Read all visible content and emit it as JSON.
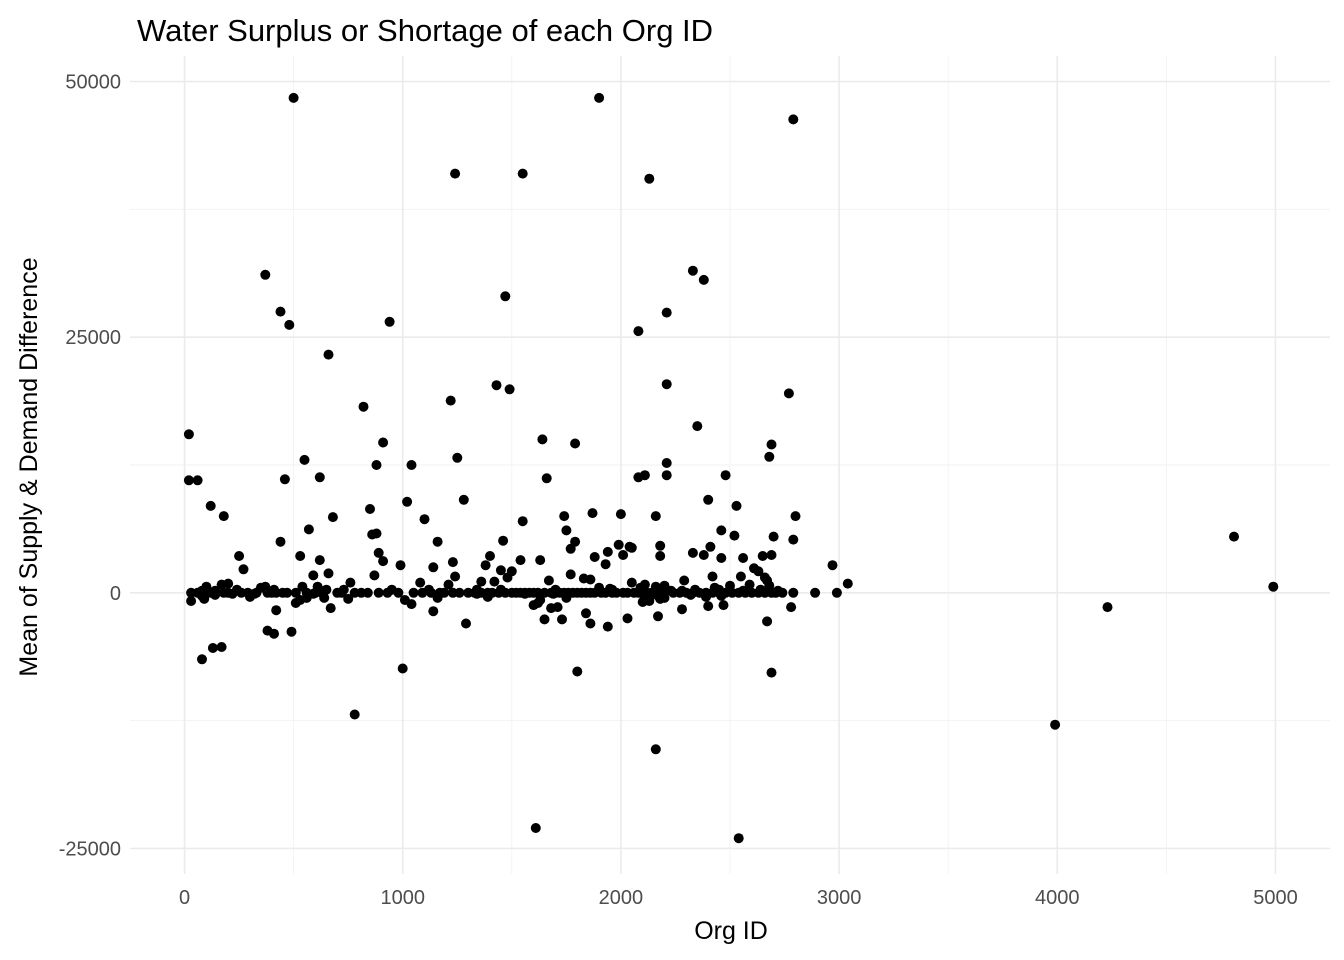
{
  "chart_data": {
    "type": "scatter",
    "title": "Water Surplus or Shortage of each Org ID",
    "xlabel": "Org ID",
    "ylabel": "Mean of Supply & Demand Difference",
    "xlim": [
      -250,
      5250
    ],
    "ylim": [
      -27500,
      52500
    ],
    "x_ticks": [
      0,
      1000,
      2000,
      3000,
      4000,
      5000
    ],
    "x_tick_labels": [
      "0",
      "1000",
      "2000",
      "3000",
      "4000",
      "5000"
    ],
    "y_ticks": [
      -25000,
      0,
      25000,
      50000
    ],
    "y_tick_labels": [
      "-25000",
      "0",
      "25000",
      "50000"
    ],
    "grid": true,
    "legend": "none",
    "point_color": "#000000",
    "series": [
      {
        "points": [
          [
            500,
            48400
          ],
          [
            1900,
            48400
          ],
          [
            2790,
            46300
          ],
          [
            1240,
            41000
          ],
          [
            1550,
            41000
          ],
          [
            2130,
            40500
          ],
          [
            370,
            31100
          ],
          [
            2330,
            31500
          ],
          [
            2380,
            30600
          ],
          [
            1470,
            29000
          ],
          [
            440,
            27500
          ],
          [
            2210,
            27400
          ],
          [
            480,
            26200
          ],
          [
            940,
            26500
          ],
          [
            2080,
            25600
          ],
          [
            660,
            23300
          ],
          [
            1430,
            20300
          ],
          [
            2210,
            20400
          ],
          [
            1490,
            19900
          ],
          [
            2770,
            19500
          ],
          [
            820,
            18200
          ],
          [
            1220,
            18800
          ],
          [
            20,
            15500
          ],
          [
            2350,
            16300
          ],
          [
            1640,
            15000
          ],
          [
            1790,
            14600
          ],
          [
            910,
            14700
          ],
          [
            2690,
            14500
          ],
          [
            2680,
            13300
          ],
          [
            550,
            13000
          ],
          [
            1250,
            13200
          ],
          [
            2210,
            12700
          ],
          [
            880,
            12500
          ],
          [
            1040,
            12500
          ],
          [
            2110,
            11500
          ],
          [
            2080,
            11300
          ],
          [
            2210,
            11500
          ],
          [
            2480,
            11500
          ],
          [
            20,
            11000
          ],
          [
            60,
            11000
          ],
          [
            460,
            11100
          ],
          [
            620,
            11300
          ],
          [
            1660,
            11200
          ],
          [
            2400,
            9100
          ],
          [
            1280,
            9100
          ],
          [
            1020,
            8900
          ],
          [
            120,
            8500
          ],
          [
            2530,
            8500
          ],
          [
            850,
            8200
          ],
          [
            180,
            7500
          ],
          [
            680,
            7400
          ],
          [
            1100,
            7200
          ],
          [
            1550,
            7000
          ],
          [
            1740,
            7500
          ],
          [
            1870,
            7800
          ],
          [
            2000,
            7700
          ],
          [
            2160,
            7500
          ],
          [
            2800,
            7500
          ],
          [
            570,
            6200
          ],
          [
            860,
            5700
          ],
          [
            880,
            5800
          ],
          [
            1750,
            6100
          ],
          [
            2460,
            6100
          ],
          [
            2520,
            5600
          ],
          [
            2700,
            5500
          ],
          [
            2790,
            5200
          ],
          [
            440,
            5000
          ],
          [
            1160,
            5000
          ],
          [
            1460,
            5100
          ],
          [
            1790,
            5000
          ],
          [
            1990,
            4700
          ],
          [
            2040,
            4500
          ],
          [
            2180,
            4600
          ],
          [
            2410,
            4500
          ],
          [
            1770,
            4300
          ],
          [
            2050,
            4400
          ],
          [
            890,
            3900
          ],
          [
            1940,
            4000
          ],
          [
            2330,
            3900
          ],
          [
            2380,
            3700
          ],
          [
            1400,
            3600
          ],
          [
            2010,
            3700
          ],
          [
            2180,
            3600
          ],
          [
            2650,
            3600
          ],
          [
            2690,
            3700
          ],
          [
            250,
            3600
          ],
          [
            530,
            3600
          ],
          [
            1880,
            3500
          ],
          [
            2460,
            3400
          ],
          [
            2560,
            3400
          ],
          [
            620,
            3200
          ],
          [
            1540,
            3200
          ],
          [
            1630,
            3200
          ],
          [
            910,
            3100
          ],
          [
            1230,
            3000
          ],
          [
            1930,
            2800
          ],
          [
            2970,
            2700
          ],
          [
            270,
            2300
          ],
          [
            990,
            2700
          ],
          [
            1380,
            2700
          ],
          [
            1450,
            2200
          ],
          [
            1500,
            2100
          ],
          [
            1140,
            2500
          ],
          [
            2610,
            2400
          ],
          [
            2630,
            2100
          ],
          [
            660,
            1900
          ],
          [
            590,
            1700
          ],
          [
            870,
            1700
          ],
          [
            1240,
            1600
          ],
          [
            1770,
            1800
          ],
          [
            1480,
            1500
          ],
          [
            2420,
            1600
          ],
          [
            2550,
            1600
          ],
          [
            1830,
            1400
          ],
          [
            1860,
            1300
          ],
          [
            2660,
            1500
          ],
          [
            2670,
            1200
          ],
          [
            2290,
            1200
          ],
          [
            1670,
            1200
          ],
          [
            1360,
            1100
          ],
          [
            1420,
            1100
          ],
          [
            2050,
            1000
          ],
          [
            3040,
            900
          ],
          [
            760,
            1000
          ],
          [
            1080,
            1000
          ],
          [
            1210,
            800
          ],
          [
            2110,
            800
          ],
          [
            2200,
            700
          ],
          [
            2500,
            700
          ],
          [
            2160,
            600
          ],
          [
            2590,
            800
          ],
          [
            2680,
            700
          ],
          [
            100,
            600
          ],
          [
            170,
            800
          ],
          [
            200,
            900
          ],
          [
            4990,
            600
          ],
          [
            350,
            500
          ],
          [
            370,
            600
          ],
          [
            540,
            600
          ],
          [
            610,
            600
          ],
          [
            1900,
            500
          ],
          [
            1950,
            400
          ],
          [
            2090,
            500
          ],
          [
            2430,
            500
          ],
          [
            80,
            200
          ],
          [
            140,
            200
          ],
          [
            240,
            300
          ],
          [
            410,
            300
          ],
          [
            650,
            300
          ],
          [
            730,
            300
          ],
          [
            950,
            300
          ],
          [
            1120,
            300
          ],
          [
            1340,
            300
          ],
          [
            1450,
            300
          ],
          [
            1700,
            300
          ],
          [
            1960,
            300
          ],
          [
            2230,
            200
          ],
          [
            2280,
            200
          ],
          [
            2340,
            300
          ],
          [
            2450,
            300
          ],
          [
            2560,
            200
          ],
          [
            2640,
            300
          ],
          [
            2720,
            200
          ],
          [
            30,
            0
          ],
          [
            60,
            0
          ],
          [
            120,
            0
          ],
          [
            180,
            0
          ],
          [
            200,
            0
          ],
          [
            260,
            0
          ],
          [
            290,
            0
          ],
          [
            330,
            0
          ],
          [
            380,
            0
          ],
          [
            400,
            0
          ],
          [
            420,
            0
          ],
          [
            450,
            0
          ],
          [
            470,
            0
          ],
          [
            510,
            0
          ],
          [
            560,
            0
          ],
          [
            600,
            0
          ],
          [
            630,
            0
          ],
          [
            700,
            0
          ],
          [
            720,
            0
          ],
          [
            780,
            0
          ],
          [
            810,
            0
          ],
          [
            840,
            0
          ],
          [
            890,
            0
          ],
          [
            930,
            0
          ],
          [
            980,
            0
          ],
          [
            1050,
            0
          ],
          [
            1090,
            0
          ],
          [
            1130,
            0
          ],
          [
            1170,
            0
          ],
          [
            1190,
            0
          ],
          [
            1230,
            0
          ],
          [
            1260,
            0
          ],
          [
            1300,
            0
          ],
          [
            1330,
            0
          ],
          [
            1360,
            0
          ],
          [
            1390,
            0
          ],
          [
            1410,
            0
          ],
          [
            1440,
            0
          ],
          [
            1470,
            0
          ],
          [
            1500,
            0
          ],
          [
            1520,
            0
          ],
          [
            1540,
            0
          ],
          [
            1560,
            0
          ],
          [
            1580,
            0
          ],
          [
            1600,
            0
          ],
          [
            1620,
            0
          ],
          [
            1650,
            0
          ],
          [
            1680,
            0
          ],
          [
            1700,
            0
          ],
          [
            1720,
            0
          ],
          [
            1740,
            0
          ],
          [
            1760,
            0
          ],
          [
            1780,
            0
          ],
          [
            1800,
            0
          ],
          [
            1820,
            0
          ],
          [
            1840,
            0
          ],
          [
            1860,
            0
          ],
          [
            1880,
            0
          ],
          [
            1910,
            0
          ],
          [
            1930,
            0
          ],
          [
            1960,
            0
          ],
          [
            1980,
            0
          ],
          [
            2010,
            0
          ],
          [
            2030,
            0
          ],
          [
            2060,
            0
          ],
          [
            2080,
            0
          ],
          [
            2100,
            0
          ],
          [
            2120,
            0
          ],
          [
            2140,
            0
          ],
          [
            2170,
            0
          ],
          [
            2200,
            0
          ],
          [
            2240,
            0
          ],
          [
            2270,
            0
          ],
          [
            2300,
            0
          ],
          [
            2330,
            0
          ],
          [
            2360,
            0
          ],
          [
            2390,
            0
          ],
          [
            2420,
            0
          ],
          [
            2450,
            0
          ],
          [
            2480,
            0
          ],
          [
            2510,
            0
          ],
          [
            2540,
            0
          ],
          [
            2570,
            0
          ],
          [
            2600,
            0
          ],
          [
            2630,
            0
          ],
          [
            2660,
            0
          ],
          [
            2690,
            0
          ],
          [
            2710,
            0
          ],
          [
            2740,
            0
          ],
          [
            2790,
            0
          ],
          [
            2890,
            0
          ],
          [
            2990,
            0
          ],
          [
            220,
            -100
          ],
          [
            320,
            -100
          ],
          [
            590,
            -100
          ],
          [
            1340,
            -100
          ],
          [
            1560,
            -100
          ],
          [
            1690,
            -100
          ],
          [
            2100,
            -100
          ],
          [
            2140,
            -200
          ],
          [
            2320,
            -200
          ],
          [
            80,
            -300
          ],
          [
            140,
            -200
          ],
          [
            300,
            -400
          ],
          [
            530,
            -700
          ],
          [
            560,
            -500
          ],
          [
            640,
            -500
          ],
          [
            750,
            -600
          ],
          [
            1010,
            -700
          ],
          [
            1160,
            -500
          ],
          [
            1390,
            -400
          ],
          [
            1630,
            -700
          ],
          [
            1750,
            -500
          ],
          [
            2170,
            -300
          ],
          [
            2180,
            -600
          ],
          [
            2200,
            -500
          ],
          [
            2390,
            -400
          ],
          [
            2460,
            -300
          ],
          [
            30,
            -800
          ],
          [
            90,
            -600
          ],
          [
            510,
            -1000
          ],
          [
            1040,
            -1100
          ],
          [
            1620,
            -1000
          ],
          [
            1600,
            -1200
          ],
          [
            2100,
            -900
          ],
          [
            2130,
            -800
          ],
          [
            2400,
            -1300
          ],
          [
            2470,
            -1200
          ],
          [
            2780,
            -1400
          ],
          [
            4230,
            -1400
          ],
          [
            1680,
            -1500
          ],
          [
            1710,
            -1400
          ],
          [
            670,
            -1500
          ],
          [
            1140,
            -1800
          ],
          [
            2280,
            -1600
          ],
          [
            420,
            -1700
          ],
          [
            1840,
            -2000
          ],
          [
            2030,
            -2500
          ],
          [
            1650,
            -2600
          ],
          [
            1730,
            -2600
          ],
          [
            2170,
            -2300
          ],
          [
            2670,
            -2800
          ],
          [
            1290,
            -3000
          ],
          [
            1860,
            -3000
          ],
          [
            1940,
            -3300
          ],
          [
            380,
            -3700
          ],
          [
            410,
            -4000
          ],
          [
            490,
            -3800
          ],
          [
            130,
            -5400
          ],
          [
            170,
            -5300
          ],
          [
            80,
            -6500
          ],
          [
            1000,
            -7400
          ],
          [
            1800,
            -7700
          ],
          [
            2690,
            -7800
          ],
          [
            780,
            -11900
          ],
          [
            3990,
            -12900
          ],
          [
            2160,
            -15300
          ],
          [
            1610,
            -23000
          ],
          [
            2540,
            -24000
          ],
          [
            4810,
            5500
          ]
        ]
      }
    ]
  }
}
